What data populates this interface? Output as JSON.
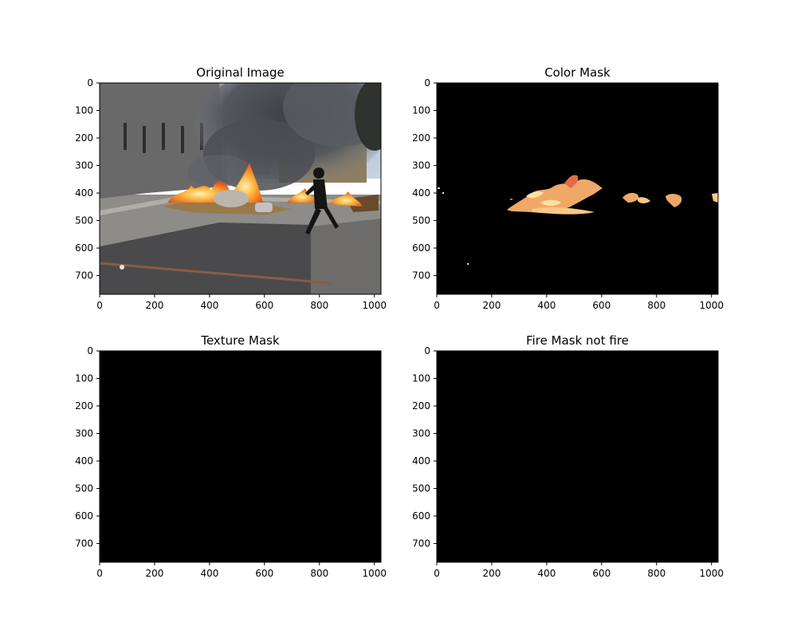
{
  "chart_data": [
    {
      "type": "image",
      "title": "Original Image",
      "content": "photo",
      "xlim": [
        0,
        1024
      ],
      "ylim": [
        768,
        0
      ],
      "xticks": [
        0,
        200,
        400,
        600,
        800,
        1000
      ],
      "yticks": [
        0,
        100,
        200,
        300,
        400,
        500,
        600,
        700
      ]
    },
    {
      "type": "image",
      "title": "Color Mask",
      "content": "mask",
      "xlim": [
        0,
        1024
      ],
      "ylim": [
        768,
        0
      ],
      "xticks": [
        0,
        200,
        400,
        600,
        800,
        1000
      ],
      "yticks": [
        0,
        100,
        200,
        300,
        400,
        500,
        600,
        700
      ]
    },
    {
      "type": "image",
      "title": "Texture Mask",
      "content": "black",
      "xlim": [
        0,
        1024
      ],
      "ylim": [
        768,
        0
      ],
      "xticks": [
        0,
        200,
        400,
        600,
        800,
        1000
      ],
      "yticks": [
        0,
        100,
        200,
        300,
        400,
        500,
        600,
        700
      ]
    },
    {
      "type": "image",
      "title": "Fire Mask not fire",
      "content": "black",
      "xlim": [
        0,
        1024
      ],
      "ylim": [
        768,
        0
      ],
      "xticks": [
        0,
        200,
        400,
        600,
        800,
        1000
      ],
      "yticks": [
        0,
        100,
        200,
        300,
        400,
        500,
        600,
        700
      ]
    }
  ]
}
